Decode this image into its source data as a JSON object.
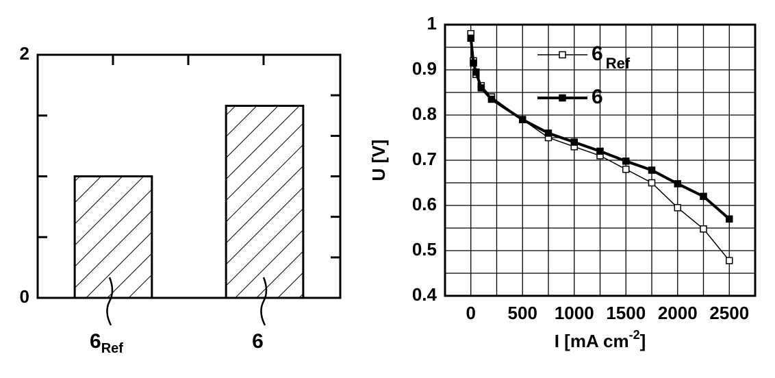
{
  "chart_data": [
    {
      "type": "bar",
      "categories": [
        "6",
        "6"
      ],
      "category_subscripts": [
        "Ref",
        null
      ],
      "values": [
        1.0,
        1.58
      ],
      "color": "#ffffff",
      "hatch": true,
      "ylim": [
        0,
        2
      ],
      "yticks": [
        0,
        2
      ],
      "minor_yticks_left": [
        0.5,
        1,
        1.5
      ],
      "minor_yticks_right": [
        0.333,
        0.667,
        1,
        1.333,
        1.667
      ]
    },
    {
      "type": "line",
      "ylabel": "U [V]",
      "xlabel": "I [mA cm",
      "xlabel_superscript": "-2",
      "xlabel_end": "]",
      "xlim": [
        -250,
        2750
      ],
      "ylim": [
        0.4,
        1.0
      ],
      "xticks": [
        0,
        500,
        1000,
        1500,
        2000,
        2500
      ],
      "yticks": [
        0.4,
        0.5,
        0.6,
        0.7,
        0.8,
        0.9,
        1.0
      ],
      "x_minor_grid": [
        -250,
        250,
        750,
        1250,
        1750,
        2250,
        2750
      ],
      "y_minor_grid": [
        0.45,
        0.55,
        0.65,
        0.75,
        0.85,
        0.95
      ],
      "grid": true,
      "x": [
        0,
        25,
        50,
        100,
        200,
        500,
        750,
        1000,
        1250,
        1500,
        1750,
        2000,
        2250,
        2500
      ],
      "series": [
        {
          "name": "6",
          "name_subscript": "Ref",
          "color": "#000000",
          "marker": "open-square",
          "values": [
            0.98,
            0.92,
            0.89,
            0.865,
            0.84,
            0.79,
            0.75,
            0.73,
            0.71,
            0.68,
            0.65,
            0.595,
            0.548,
            0.478
          ]
        },
        {
          "name": "6",
          "color": "#000000",
          "marker": "filled-square",
          "values": [
            0.97,
            0.915,
            0.895,
            0.86,
            0.835,
            0.79,
            0.76,
            0.74,
            0.72,
            0.698,
            0.678,
            0.648,
            0.62,
            0.57
          ]
        }
      ]
    }
  ]
}
